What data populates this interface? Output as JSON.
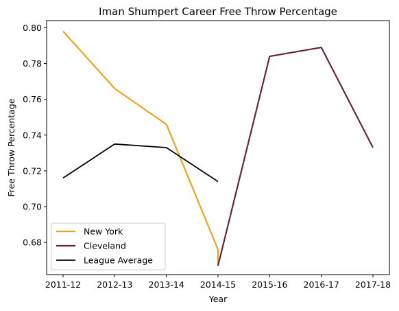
{
  "chart_data": {
    "type": "line",
    "title": "Iman Shumpert Career Free Throw Percentage",
    "xlabel": "Year",
    "ylabel": "Free Throw Percentage",
    "categories": [
      "2011-12",
      "2012-13",
      "2013-14",
      "2014-15",
      "2015-16",
      "2016-17",
      "2017-18"
    ],
    "ylim": [
      0.662,
      0.804
    ],
    "yticks": [
      "0.68",
      "0.70",
      "0.72",
      "0.74",
      "0.76",
      "0.78",
      "0.80"
    ],
    "grid": false,
    "legend_position": "lower-left",
    "series": [
      {
        "name": "New York",
        "color": "#f5a01a",
        "points": [
          {
            "x": "2011-12",
            "y": 0.798
          },
          {
            "x": "2012-13",
            "y": 0.766
          },
          {
            "x": "2013-14",
            "y": 0.746
          },
          {
            "x": "2014-15",
            "y": 0.676
          },
          {
            "x": "2014-15",
            "y": 0.667
          }
        ]
      },
      {
        "name": "Cleveland",
        "color": "#6a2142",
        "points": [
          {
            "x": "2014-15",
            "y": 0.667
          },
          {
            "x": "2015-16",
            "y": 0.784
          },
          {
            "x": "2016-17",
            "y": 0.789
          },
          {
            "x": "2017-18",
            "y": 0.733
          }
        ]
      },
      {
        "name": "League Average",
        "color": "#000000",
        "points": [
          {
            "x": "2011-12",
            "y": 0.716
          },
          {
            "x": "2012-13",
            "y": 0.735
          },
          {
            "x": "2013-14",
            "y": 0.733
          },
          {
            "x": "2014-15",
            "y": 0.714
          }
        ]
      }
    ]
  }
}
